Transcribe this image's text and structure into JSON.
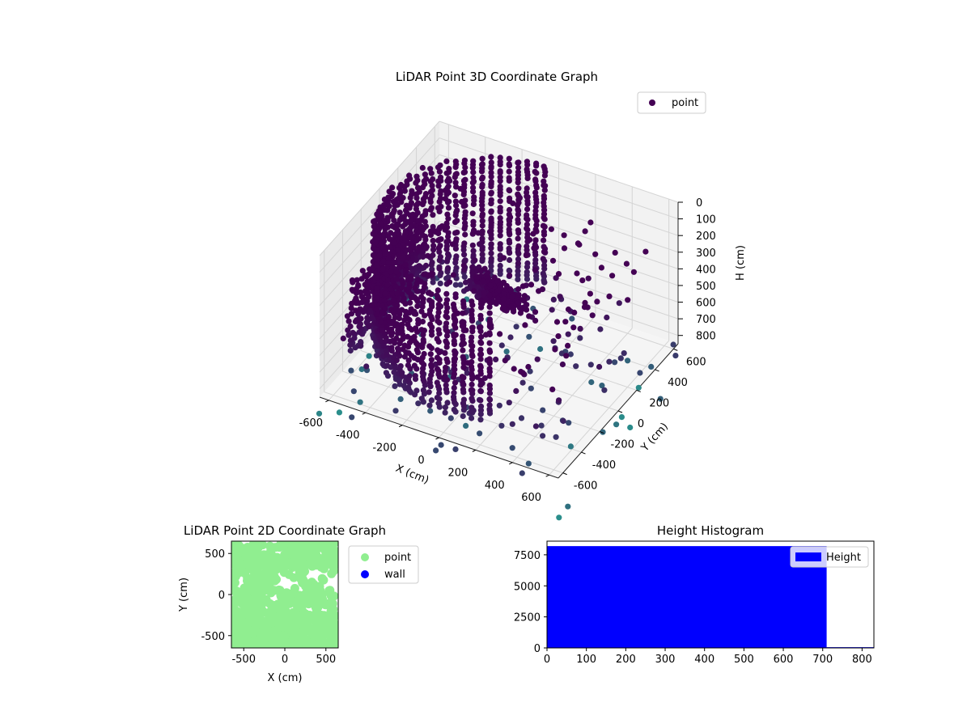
{
  "chart_data": [
    {
      "type": "scatter",
      "projection": "3d",
      "title": "LiDAR Point 3D Coordinate Graph",
      "xlabel": "X (cm)",
      "ylabel": "Y (cm)",
      "zlabel": "H (cm)",
      "xticks": [
        "-600",
        "-400",
        "-200",
        "0",
        "200",
        "400",
        "600"
      ],
      "yticks": [
        "-600",
        "-400",
        "-200",
        "0",
        "200",
        "400",
        "600"
      ],
      "zticks": [
        "0",
        "100",
        "200",
        "300",
        "400",
        "500",
        "600",
        "700",
        "800"
      ],
      "xlim": [
        -650,
        650
      ],
      "ylim": [
        -650,
        650
      ],
      "zlim": [
        850,
        0
      ],
      "zaxis_inverted": true,
      "grid": true,
      "legend": {
        "placement": "top-right",
        "entries": [
          "point"
        ]
      },
      "series": [
        {
          "name": "point",
          "colormap": "viridis",
          "color_low": "#440154",
          "color_high": "#2a8e8b"
        }
      ],
      "structures": {
        "arc_wall": {
          "cx": 0,
          "cy": 0,
          "radius": 600,
          "start_deg": 95,
          "end_deg": 295,
          "h_top": 10,
          "h_bottom": 720
        },
        "left_wall": {
          "x": -580,
          "y_from": -450,
          "y_to": 350,
          "h_top": 300,
          "h_bottom": 700
        },
        "inner_ridge": {
          "from": [
            -300,
            300,
            600
          ],
          "to": [
            200,
            -200,
            250
          ]
        }
      }
    },
    {
      "type": "scatter",
      "title": "LiDAR Point 2D Coordinate Graph",
      "xlabel": "X (cm)",
      "ylabel": "Y (cm)",
      "xticks": [
        "-500",
        "0",
        "500"
      ],
      "yticks": [
        "-500",
        "0",
        "500"
      ],
      "xlim": [
        -650,
        650
      ],
      "ylim": [
        -650,
        650
      ],
      "legend": {
        "placement": "right",
        "entries": [
          "point",
          "wall"
        ]
      },
      "series": [
        {
          "name": "point",
          "color": "#90ee90"
        },
        {
          "name": "wall",
          "color": "#0000ff"
        }
      ]
    },
    {
      "type": "histogram",
      "title": "Height Histogram",
      "xticks": [
        "0",
        "100",
        "200",
        "300",
        "400",
        "500",
        "600",
        "700",
        "800"
      ],
      "yticks": [
        "0",
        "2500",
        "5000",
        "7500"
      ],
      "xlim": [
        0,
        830
      ],
      "ylim": [
        0,
        8600
      ],
      "legend": {
        "placement": "top-right",
        "entries": [
          "Height"
        ]
      },
      "series": [
        {
          "name": "Height",
          "color": "#0000ff",
          "bins": [
            {
              "start": 0,
              "end": 710,
              "count": 8200
            },
            {
              "start": 710,
              "end": 830,
              "count": 60
            }
          ]
        }
      ]
    }
  ]
}
